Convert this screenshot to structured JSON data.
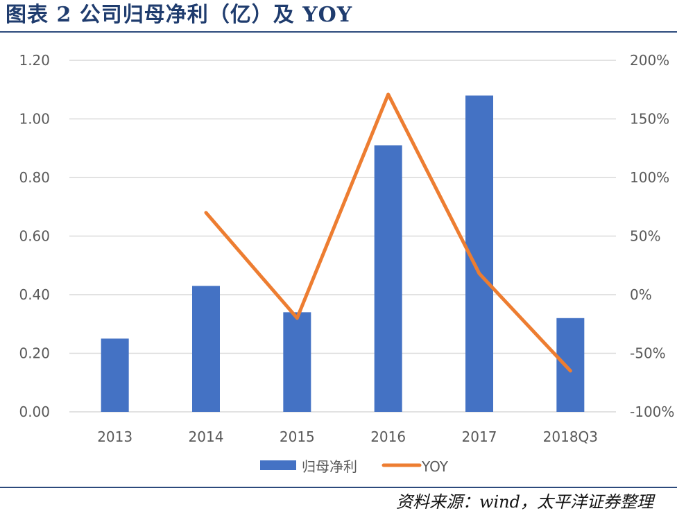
{
  "header": {
    "title": "图表 2 公司归母净利（亿）及 YOY"
  },
  "footer": {
    "source": "资料来源：wind，太平洋证券整理"
  },
  "chart_data": {
    "type": "bar",
    "title": "图表 2 公司归母净利（亿）及 YOY",
    "categories": [
      "2013",
      "2014",
      "2015",
      "2016",
      "2017",
      "2018Q3"
    ],
    "series": [
      {
        "name": "归母净利",
        "type": "bar",
        "axis": "left",
        "color": "#4472c4",
        "values": [
          0.25,
          0.43,
          0.34,
          0.91,
          1.08,
          0.32
        ]
      },
      {
        "name": "YOY",
        "type": "line",
        "axis": "right",
        "color": "#ed7d31",
        "values": [
          null,
          0.7,
          -0.2,
          1.71,
          0.18,
          -0.65
        ]
      }
    ],
    "y_left": {
      "min": 0,
      "max": 1.2,
      "step": 0.2,
      "tick_labels": [
        "0.00",
        "0.20",
        "0.40",
        "0.60",
        "0.80",
        "1.00",
        "1.20"
      ]
    },
    "y_right": {
      "min": -1.0,
      "max": 2.0,
      "step": 0.5,
      "tick_labels": [
        "-100%",
        "-50%",
        "0%",
        "50%",
        "100%",
        "150%",
        "200%"
      ]
    },
    "grid": true,
    "legend": {
      "position": "bottom",
      "items": [
        "归母净利",
        "YOY"
      ]
    }
  }
}
